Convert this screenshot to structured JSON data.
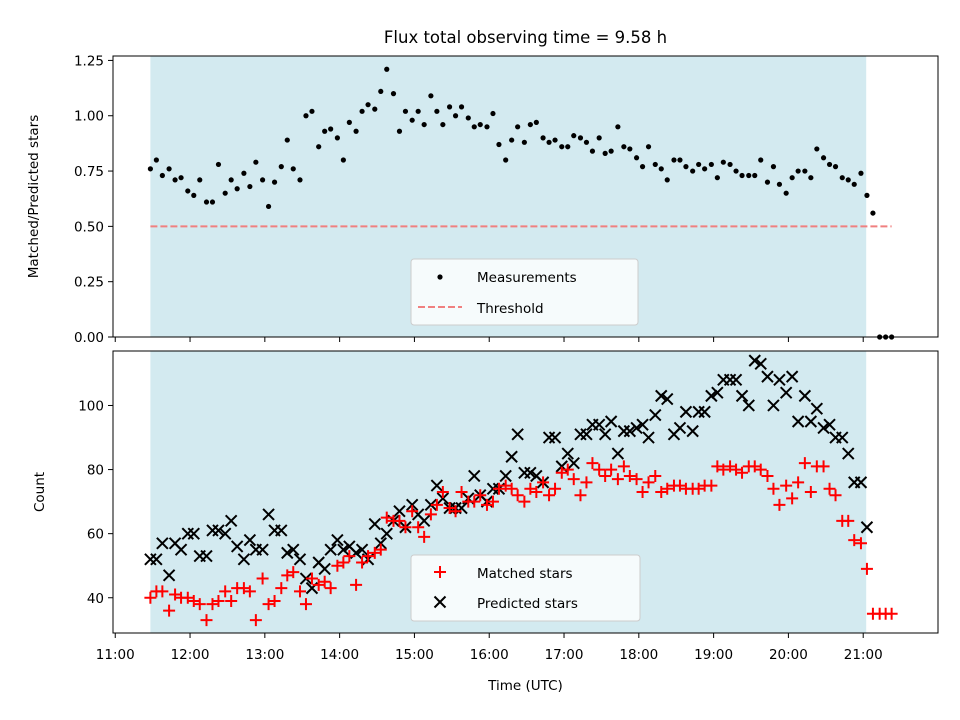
{
  "chart_data": [
    {
      "type": "scatter",
      "title": "Flux total observing time = 9.58 h",
      "xlabel": "",
      "ylabel": "Matched/Predicted stars",
      "ylim": [
        0,
        1.27
      ],
      "yticks": [
        0.0,
        0.25,
        0.5,
        0.75,
        1.0,
        1.25
      ],
      "ytick_labels": [
        "0.00",
        "0.25",
        "0.50",
        "0.75",
        "1.00",
        "1.25"
      ],
      "xlim_hours": [
        10.97,
        22.0
      ],
      "shaded_span_hours": [
        11.47,
        21.04
      ],
      "threshold": 0.5,
      "legend": [
        "Measurements",
        "Threshold"
      ],
      "legend_location": "lower center",
      "series": [
        {
          "name": "Measurements",
          "marker": "dot",
          "color": "#000000",
          "x": [
            11.47,
            11.55,
            11.63,
            11.72,
            11.8,
            11.88,
            11.97,
            12.05,
            12.13,
            12.22,
            12.3,
            12.38,
            12.47,
            12.55,
            12.63,
            12.72,
            12.8,
            12.88,
            12.97,
            13.05,
            13.13,
            13.22,
            13.3,
            13.38,
            13.47,
            13.55,
            13.63,
            13.72,
            13.8,
            13.88,
            13.97,
            14.05,
            14.13,
            14.22,
            14.3,
            14.38,
            14.47,
            14.55,
            14.63,
            14.72,
            14.8,
            14.88,
            14.97,
            15.05,
            15.13,
            15.22,
            15.3,
            15.38,
            15.47,
            15.55,
            15.63,
            15.72,
            15.8,
            15.88,
            15.97,
            16.05,
            16.13,
            16.22,
            16.3,
            16.38,
            16.47,
            16.55,
            16.63,
            16.72,
            16.8,
            16.88,
            16.97,
            17.05,
            17.13,
            17.22,
            17.3,
            17.38,
            17.47,
            17.55,
            17.63,
            17.72,
            17.8,
            17.88,
            17.97,
            18.05,
            18.13,
            18.22,
            18.3,
            18.38,
            18.47,
            18.55,
            18.63,
            18.72,
            18.8,
            18.88,
            18.97,
            19.05,
            19.13,
            19.22,
            19.3,
            19.38,
            19.47,
            19.55,
            19.63,
            19.72,
            19.8,
            19.88,
            19.97,
            20.05,
            20.13,
            20.22,
            20.3,
            20.38,
            20.47,
            20.55,
            20.63,
            20.72,
            20.8,
            20.88,
            20.97,
            21.05,
            21.13,
            21.22,
            21.3,
            21.38
          ],
          "y": [
            0.76,
            0.8,
            0.73,
            0.76,
            0.71,
            0.72,
            0.66,
            0.64,
            0.71,
            0.61,
            0.61,
            0.78,
            0.65,
            0.71,
            0.67,
            0.74,
            0.68,
            0.79,
            0.71,
            0.59,
            0.7,
            0.77,
            0.89,
            0.76,
            0.71,
            1.0,
            1.02,
            0.86,
            0.93,
            0.94,
            0.9,
            0.8,
            0.97,
            0.93,
            1.02,
            1.05,
            1.03,
            1.11,
            1.21,
            1.1,
            0.93,
            1.02,
            0.98,
            1.02,
            0.96,
            1.09,
            1.02,
            0.96,
            1.04,
            1.0,
            1.04,
            0.99,
            0.95,
            0.96,
            0.95,
            1.01,
            0.87,
            0.8,
            0.89,
            0.95,
            0.88,
            0.96,
            0.97,
            0.9,
            0.88,
            0.89,
            0.86,
            0.86,
            0.91,
            0.9,
            0.88,
            0.84,
            0.9,
            0.83,
            0.84,
            0.95,
            0.86,
            0.85,
            0.81,
            0.77,
            0.86,
            0.78,
            0.76,
            0.71,
            0.8,
            0.8,
            0.77,
            0.75,
            0.78,
            0.76,
            0.78,
            0.72,
            0.79,
            0.78,
            0.75,
            0.73,
            0.73,
            0.73,
            0.8,
            0.7,
            0.77,
            0.69,
            0.65,
            0.72,
            0.75,
            0.75,
            0.72,
            0.85,
            0.81,
            0.78,
            0.77,
            0.72,
            0.71,
            0.69,
            0.74,
            0.64,
            0.56,
            0.0,
            0.0,
            0.0
          ]
        },
        {
          "name": "Threshold",
          "style": "dashed",
          "color": "#f08080",
          "x": [
            11.47,
            21.38
          ],
          "y": [
            0.5,
            0.5
          ]
        }
      ]
    },
    {
      "type": "scatter",
      "xlabel": "Time (UTC)",
      "ylabel": "Count",
      "ylim": [
        29,
        117
      ],
      "yticks": [
        40,
        60,
        80,
        100
      ],
      "xlim_hours": [
        10.97,
        22.0
      ],
      "shaded_span_hours": [
        11.47,
        21.04
      ],
      "xticks_hours": [
        11,
        12,
        13,
        14,
        15,
        16,
        17,
        18,
        19,
        20,
        21
      ],
      "xtick_labels": [
        "11:00",
        "12:00",
        "13:00",
        "14:00",
        "15:00",
        "16:00",
        "17:00",
        "18:00",
        "19:00",
        "20:00",
        "21:00"
      ],
      "legend": [
        "Matched stars",
        "Predicted stars"
      ],
      "legend_location": "lower center",
      "series": [
        {
          "name": "Matched stars",
          "marker": "plus",
          "color": "#ff0000",
          "x": [
            11.47,
            11.55,
            11.63,
            11.72,
            11.8,
            11.88,
            11.97,
            12.05,
            12.13,
            12.22,
            12.3,
            12.38,
            12.47,
            12.55,
            12.63,
            12.72,
            12.8,
            12.88,
            12.97,
            13.05,
            13.13,
            13.22,
            13.3,
            13.38,
            13.47,
            13.55,
            13.63,
            13.72,
            13.8,
            13.88,
            13.97,
            14.05,
            14.13,
            14.22,
            14.3,
            14.38,
            14.47,
            14.55,
            14.63,
            14.72,
            14.8,
            14.88,
            14.97,
            15.05,
            15.13,
            15.22,
            15.3,
            15.38,
            15.47,
            15.55,
            15.63,
            15.72,
            15.8,
            15.88,
            15.97,
            16.05,
            16.13,
            16.22,
            16.3,
            16.38,
            16.47,
            16.55,
            16.63,
            16.72,
            16.8,
            16.88,
            16.97,
            17.05,
            17.13,
            17.22,
            17.3,
            17.38,
            17.47,
            17.55,
            17.63,
            17.72,
            17.8,
            17.88,
            17.97,
            18.05,
            18.13,
            18.22,
            18.3,
            18.38,
            18.47,
            18.55,
            18.63,
            18.72,
            18.8,
            18.88,
            18.97,
            19.05,
            19.13,
            19.22,
            19.3,
            19.38,
            19.47,
            19.55,
            19.63,
            19.72,
            19.8,
            19.88,
            19.97,
            20.05,
            20.13,
            20.22,
            20.3,
            20.38,
            20.47,
            20.55,
            20.63,
            20.72,
            20.8,
            20.88,
            20.97,
            21.05,
            21.13,
            21.22,
            21.3,
            21.38
          ],
          "y": [
            40,
            42,
            42,
            36,
            41,
            40,
            40,
            39,
            38,
            33,
            38,
            39,
            42,
            39,
            43,
            43,
            42,
            33,
            46,
            38,
            39,
            43,
            47,
            48,
            42,
            38,
            46,
            44,
            45,
            43,
            50,
            51,
            53,
            44,
            51,
            53,
            54,
            55,
            65,
            64,
            64,
            62,
            67,
            62,
            59,
            66,
            69,
            73,
            68,
            67,
            73,
            70,
            70,
            72,
            69,
            70,
            74,
            75,
            74,
            72,
            70,
            74,
            73,
            76,
            72,
            74,
            79,
            80,
            77,
            72,
            76,
            82,
            80,
            78,
            80,
            77,
            81,
            78,
            77,
            73,
            76,
            78,
            73,
            74,
            75,
            75,
            74,
            74,
            74,
            75,
            75,
            81,
            80,
            81,
            80,
            79,
            81,
            81,
            80,
            78,
            74,
            69,
            75,
            71,
            76,
            82,
            73,
            81,
            81,
            74,
            72,
            64,
            64,
            58,
            57,
            49,
            35,
            35,
            35,
            35
          ]
        },
        {
          "name": "Predicted stars",
          "marker": "x",
          "color": "#000000",
          "x": [
            11.47,
            11.55,
            11.63,
            11.72,
            11.8,
            11.88,
            11.97,
            12.05,
            12.13,
            12.22,
            12.3,
            12.38,
            12.47,
            12.55,
            12.63,
            12.72,
            12.8,
            12.88,
            12.97,
            13.05,
            13.13,
            13.22,
            13.3,
            13.38,
            13.47,
            13.55,
            13.63,
            13.72,
            13.8,
            13.88,
            13.97,
            14.05,
            14.13,
            14.22,
            14.3,
            14.38,
            14.47,
            14.55,
            14.63,
            14.72,
            14.8,
            14.88,
            14.97,
            15.05,
            15.13,
            15.22,
            15.3,
            15.38,
            15.47,
            15.55,
            15.63,
            15.72,
            15.8,
            15.88,
            15.97,
            16.05,
            16.13,
            16.22,
            16.3,
            16.38,
            16.47,
            16.55,
            16.63,
            16.72,
            16.8,
            16.88,
            16.97,
            17.05,
            17.13,
            17.22,
            17.3,
            17.38,
            17.47,
            17.55,
            17.63,
            17.72,
            17.8,
            17.88,
            17.97,
            18.05,
            18.13,
            18.22,
            18.3,
            18.38,
            18.47,
            18.55,
            18.63,
            18.72,
            18.8,
            18.88,
            18.97,
            19.05,
            19.13,
            19.22,
            19.3,
            19.38,
            19.47,
            19.55,
            19.63,
            19.72,
            19.8,
            19.88,
            19.97,
            20.05,
            20.13,
            20.22,
            20.3,
            20.38,
            20.47,
            20.55,
            20.63,
            20.72,
            20.8,
            20.88,
            20.97,
            21.05
          ],
          "y": [
            52,
            52,
            57,
            47,
            57,
            55,
            60,
            60,
            53,
            53,
            61,
            61,
            60,
            64,
            56,
            52,
            58,
            55,
            55,
            66,
            61,
            61,
            54,
            55,
            52,
            46,
            43,
            51,
            49,
            55,
            58,
            55,
            56,
            54,
            55,
            52,
            63,
            57,
            60,
            64,
            67,
            62,
            69,
            66,
            64,
            69,
            75,
            71,
            68,
            68,
            68,
            71,
            78,
            72,
            70,
            74,
            74,
            78,
            84,
            91,
            79,
            79,
            78,
            76,
            90,
            90,
            81,
            85,
            82,
            91,
            91,
            94,
            94,
            91,
            95,
            85,
            92,
            92,
            93,
            94,
            90,
            97,
            103,
            102,
            91,
            93,
            98,
            92,
            98,
            98,
            103,
            104,
            108,
            108,
            108,
            103,
            100,
            114,
            113,
            109,
            100,
            108,
            104,
            109,
            95,
            103,
            95,
            99,
            93,
            94,
            90,
            90,
            85,
            76,
            76,
            62
          ]
        }
      ]
    }
  ]
}
